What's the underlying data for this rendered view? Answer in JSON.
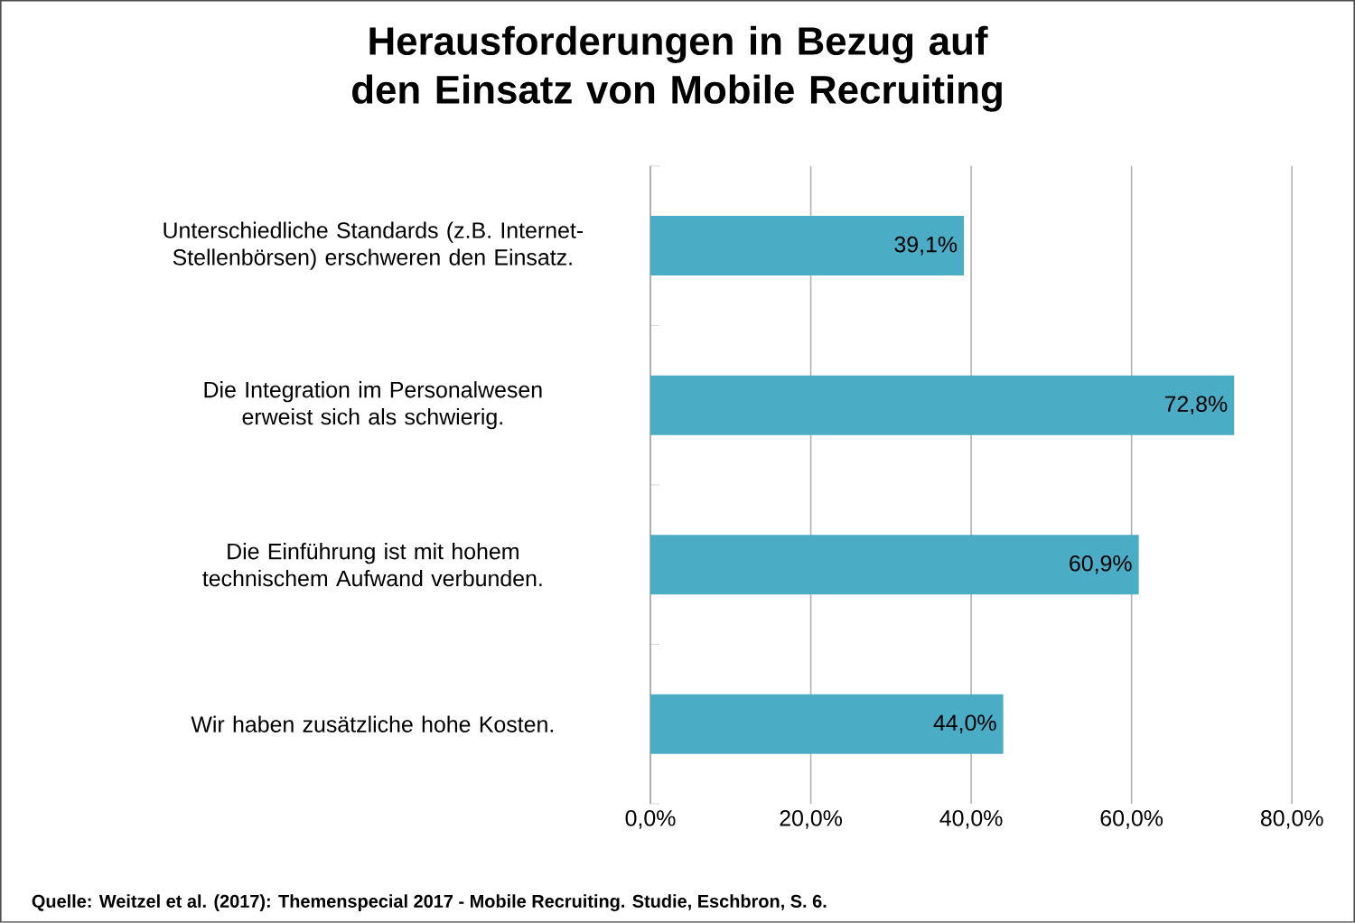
{
  "chart_data": {
    "type": "bar",
    "orientation": "horizontal",
    "title": "Herausforderungen in Bezug auf den Einsatz von Mobile Recruiting",
    "categories": [
      "Unterschiedliche Standards (z.B. Internet-Stellenbörsen) erschweren den Einsatz.",
      "Die Integration im Personalwesen erweist sich als schwierig.",
      "Die Einführung ist mit hohem technischem Aufwand verbunden.",
      "Wir haben zusätzliche hohe Kosten."
    ],
    "values": [
      39.1,
      72.8,
      60.9,
      44.0
    ],
    "value_labels": [
      "39,1%",
      "72,8%",
      "60,9%",
      "44,0%"
    ],
    "color": "#4bacc6",
    "xlim": [
      0,
      80
    ],
    "xticks": [
      {
        "value": 0,
        "label": "0,0%"
      },
      {
        "value": 20,
        "label": "20,0%"
      },
      {
        "value": 40,
        "label": "40,0%"
      },
      {
        "value": 60,
        "label": "60,0%"
      },
      {
        "value": 80,
        "label": "80,0%"
      }
    ],
    "grid": "x",
    "annotations": [
      "Quelle:  Weitzel et al. (2017): Themenspecial 2017 - Mobile Recruiting. Studie, Eschbron, S. 6."
    ]
  }
}
